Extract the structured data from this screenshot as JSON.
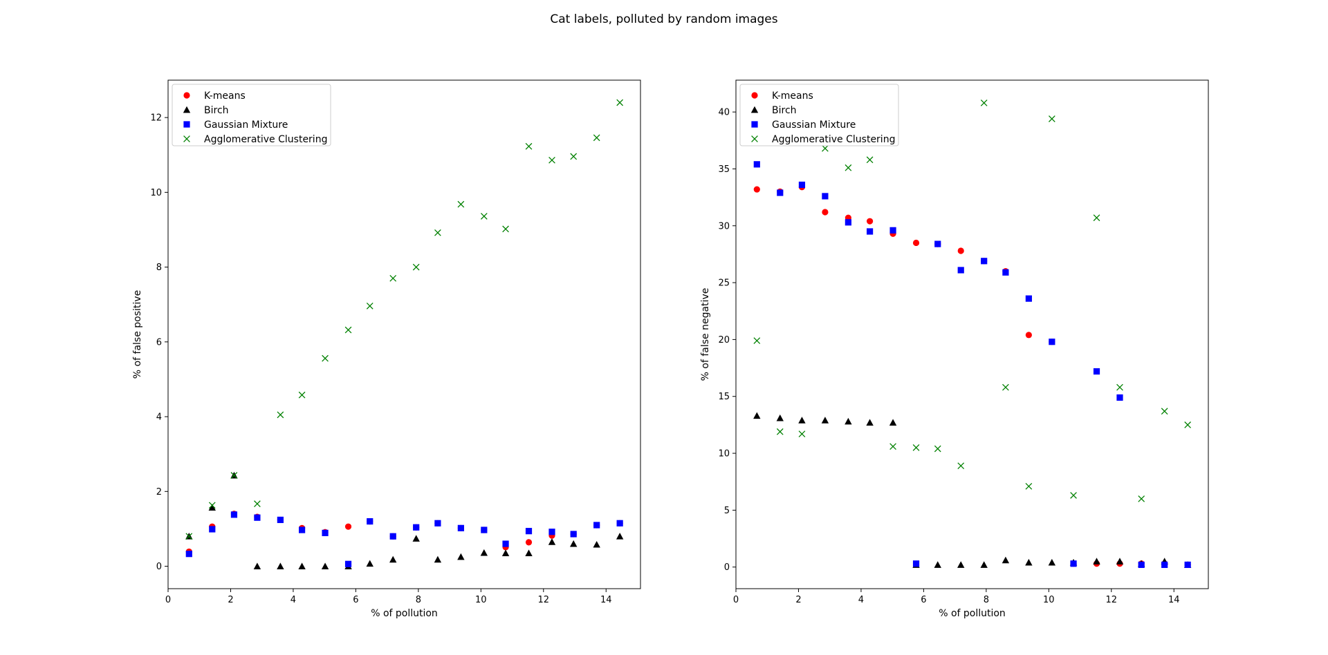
{
  "figure_title": "Cat labels, polluted by random images",
  "chart_data": [
    {
      "type": "scatter",
      "title": "",
      "xlabel": "% of pollution",
      "ylabel": "% of false positive",
      "xlim": [
        0,
        15.1
      ],
      "ylim": [
        -0.6,
        13.0
      ],
      "xticks": [
        0,
        2,
        4,
        6,
        8,
        10,
        12,
        14
      ],
      "yticks": [
        0,
        2,
        4,
        6,
        8,
        10,
        12
      ],
      "legend_position": "upper-left",
      "x": [
        0.67,
        1.41,
        2.11,
        2.85,
        3.59,
        4.28,
        5.02,
        5.76,
        6.45,
        7.19,
        7.93,
        8.62,
        9.36,
        10.1,
        10.79,
        11.53,
        12.27,
        12.96,
        13.7,
        14.44
      ],
      "series": [
        {
          "name": "K-means",
          "marker": "circle",
          "color": "#ff0000",
          "values": [
            0.39,
            1.06,
            1.4,
            1.32,
            1.24,
            1.02,
            0.91,
            1.06,
            1.2,
            0.8,
            1.04,
            1.15,
            1.02,
            0.97,
            0.51,
            0.64,
            0.82,
            0.86,
            1.1,
            1.15
          ]
        },
        {
          "name": "Birch",
          "marker": "triangle",
          "color": "#000000",
          "values": [
            0.8,
            1.57,
            2.43,
            0.0,
            0.0,
            0.0,
            0.0,
            0.0,
            0.07,
            0.18,
            0.74,
            0.18,
            0.25,
            0.36,
            0.35,
            0.35,
            0.65,
            0.6,
            0.58,
            0.8
          ]
        },
        {
          "name": "Gaussian Mixture",
          "marker": "square",
          "color": "#0000ff",
          "values": [
            0.33,
            0.99,
            1.38,
            1.3,
            1.24,
            0.97,
            0.89,
            0.06,
            1.2,
            0.8,
            1.04,
            1.15,
            1.02,
            0.97,
            0.6,
            0.94,
            0.92,
            0.86,
            1.1,
            1.15
          ]
        },
        {
          "name": "Agglomerative Clustering",
          "marker": "x",
          "color": "#008000",
          "values": [
            0.8,
            1.63,
            2.43,
            1.67,
            4.05,
            4.58,
            5.56,
            6.32,
            6.96,
            7.7,
            8.0,
            8.92,
            9.68,
            9.36,
            9.02,
            11.23,
            10.86,
            10.96,
            11.46,
            12.4
          ]
        }
      ]
    },
    {
      "type": "scatter",
      "title": "",
      "xlabel": "% of pollution",
      "ylabel": "% of false negative",
      "xlim": [
        0,
        15.1
      ],
      "ylim": [
        -1.9,
        42.8
      ],
      "xticks": [
        0,
        2,
        4,
        6,
        8,
        10,
        12,
        14
      ],
      "yticks": [
        0,
        5,
        10,
        15,
        20,
        25,
        30,
        35,
        40
      ],
      "legend_position": "upper-left",
      "x": [
        0.67,
        1.41,
        2.11,
        2.85,
        3.59,
        4.28,
        5.02,
        5.76,
        6.45,
        7.19,
        7.93,
        8.62,
        9.36,
        10.1,
        10.79,
        11.53,
        12.27,
        12.96,
        13.7,
        14.44
      ],
      "series": [
        {
          "name": "K-means",
          "marker": "circle",
          "color": "#ff0000",
          "values": [
            33.2,
            33.0,
            33.4,
            31.2,
            30.7,
            30.4,
            29.3,
            28.5,
            28.4,
            27.8,
            26.9,
            26.0,
            20.4,
            19.8,
            0.3,
            0.3,
            0.3,
            0.3,
            0.3,
            0.2
          ]
        },
        {
          "name": "Birch",
          "marker": "triangle",
          "color": "#000000",
          "values": [
            13.3,
            13.1,
            12.9,
            12.9,
            12.8,
            12.7,
            12.7,
            0.2,
            0.2,
            0.2,
            0.2,
            0.6,
            0.4,
            0.4,
            0.4,
            0.5,
            0.5,
            0.3,
            0.5,
            0.2
          ]
        },
        {
          "name": "Gaussian Mixture",
          "marker": "square",
          "color": "#0000ff",
          "values": [
            35.4,
            32.9,
            33.6,
            32.6,
            30.3,
            29.5,
            29.6,
            0.3,
            28.4,
            26.1,
            26.9,
            25.9,
            23.6,
            19.8,
            0.3,
            17.2,
            14.9,
            0.2,
            0.2,
            0.2
          ]
        },
        {
          "name": "Agglomerative Clustering",
          "marker": "x",
          "color": "#008000",
          "values": [
            19.9,
            11.9,
            11.7,
            36.8,
            35.1,
            35.8,
            10.6,
            10.5,
            10.4,
            8.9,
            40.8,
            15.8,
            7.1,
            39.4,
            6.3,
            30.7,
            15.8,
            6.0,
            13.7,
            12.5
          ]
        }
      ]
    }
  ]
}
